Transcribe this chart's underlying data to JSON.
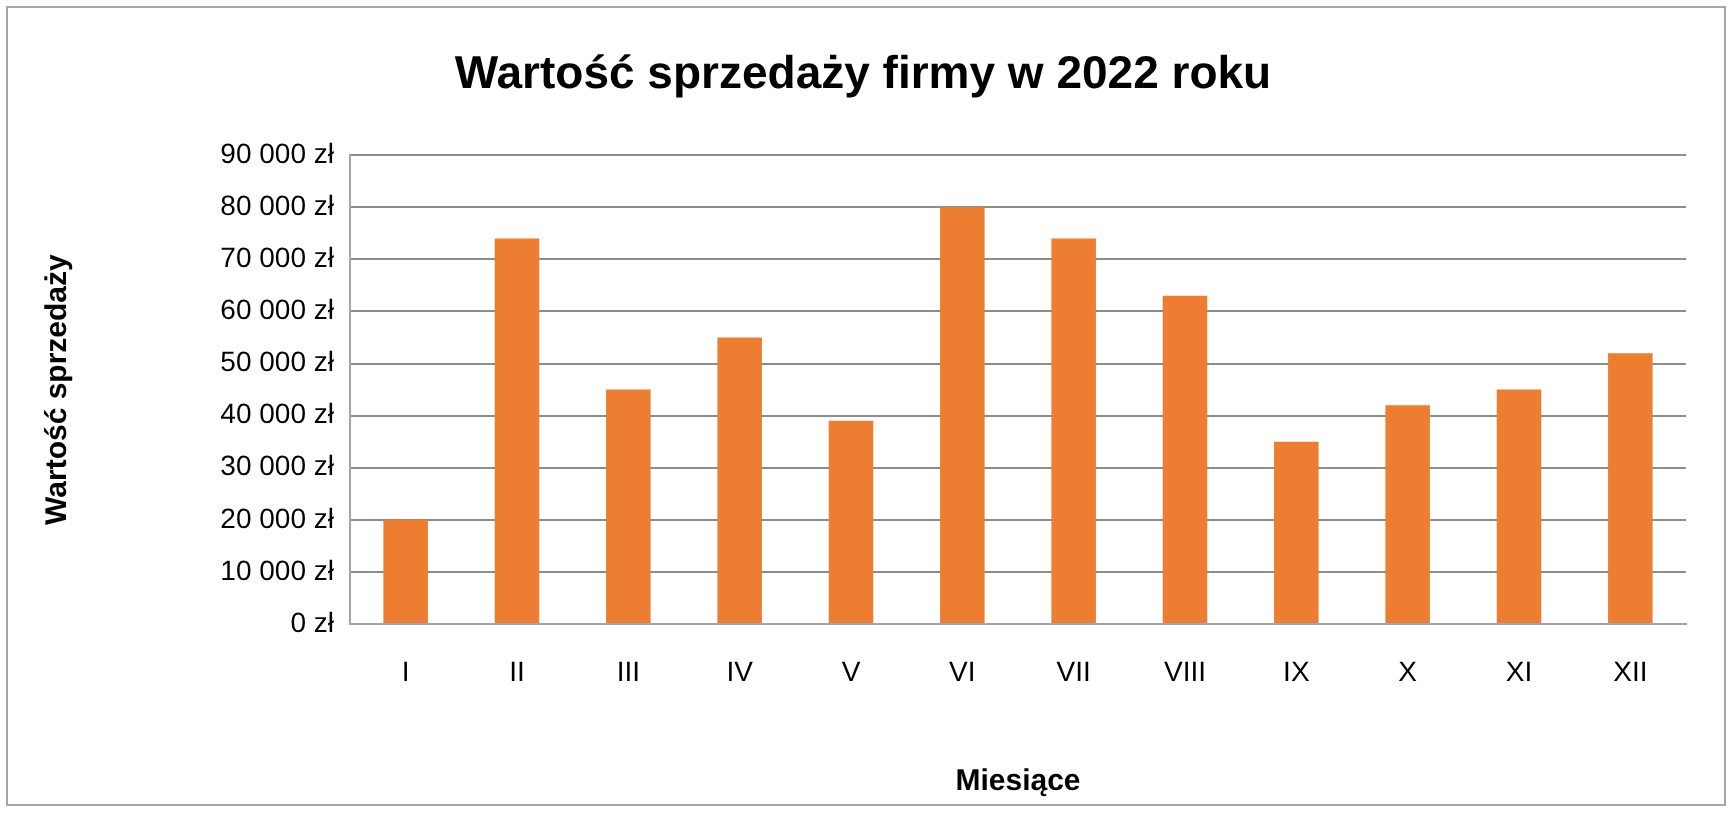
{
  "chart_data": {
    "type": "bar",
    "title": "Wartość sprzedaży firmy w 2022 roku",
    "xlabel": "Miesiące",
    "ylabel": "Wartość sprzedaży",
    "categories": [
      "I",
      "II",
      "III",
      "IV",
      "V",
      "VI",
      "VII",
      "VIII",
      "IX",
      "X",
      "XI",
      "XII"
    ],
    "values": [
      20000,
      74000,
      45000,
      55000,
      39000,
      80000,
      74000,
      63000,
      35000,
      42000,
      45000,
      52000
    ],
    "color": "#ed7d31",
    "ylim": [
      0,
      90000
    ],
    "yticks": [
      {
        "value": 0,
        "label": "0 zł"
      },
      {
        "value": 10000,
        "label": "10 000 zł"
      },
      {
        "value": 20000,
        "label": "20 000 zł"
      },
      {
        "value": 30000,
        "label": "30 000 zł"
      },
      {
        "value": 40000,
        "label": "40 000 zł"
      },
      {
        "value": 50000,
        "label": "50 000 zł"
      },
      {
        "value": 60000,
        "label": "60 000 zł"
      },
      {
        "value": 70000,
        "label": "70 000 zł"
      },
      {
        "value": 80000,
        "label": "80 000 zł"
      },
      {
        "value": 90000,
        "label": "90 000 zł"
      }
    ],
    "grid": "y"
  }
}
